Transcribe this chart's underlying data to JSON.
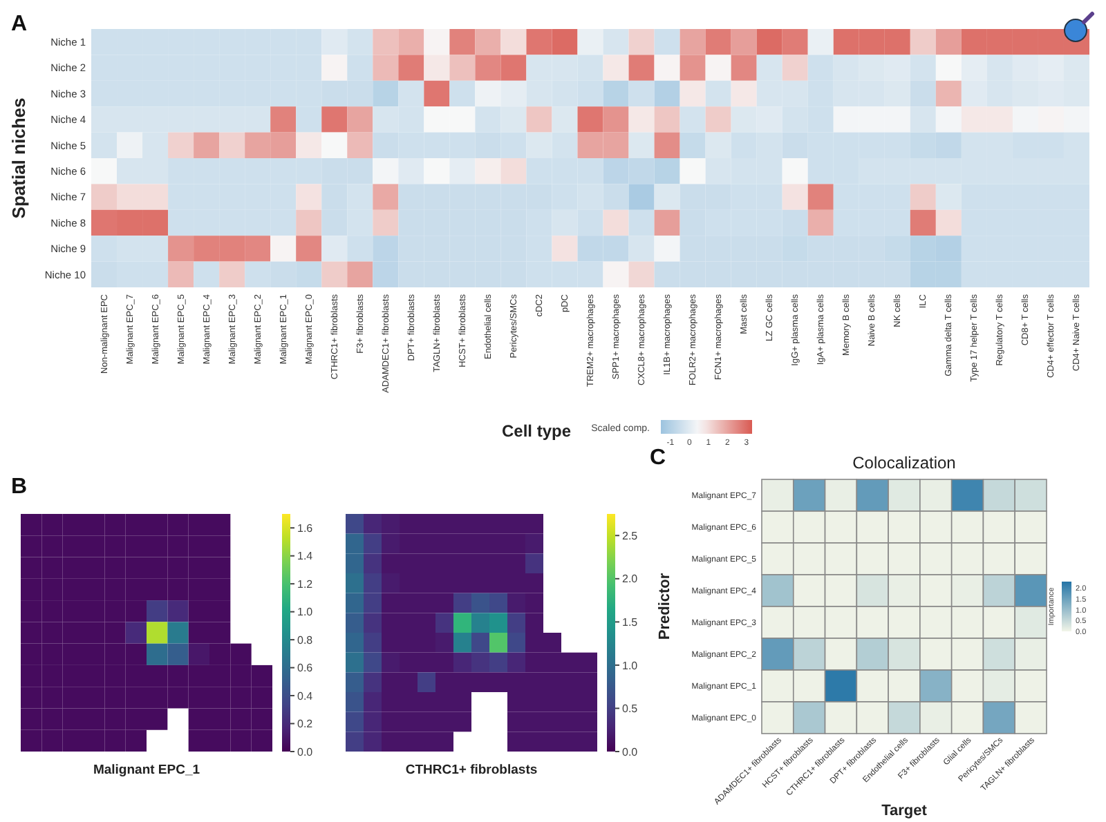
{
  "chart_data": [
    {
      "type": "heatmap",
      "annotations": [
        "A"
      ],
      "xlabel": "Cell type",
      "ylabel": "Spatial niches",
      "clabel": "Scaled comp.",
      "clim": [
        -1.5,
        3.3
      ],
      "cticks": [
        -1,
        0,
        1,
        2,
        3
      ],
      "categories": [
        "Non-malignant EPC",
        "Malignant EPC_7",
        "Malignant EPC_6",
        "Malignant EPC_5",
        "Malignant EPC_4",
        "Malignant EPC_3",
        "Malignant EPC_2",
        "Malignant EPC_1",
        "Malignant EPC_0",
        "CTHRC1+ fibroblasts",
        "F3+ fibroblasts",
        "ADAMDEC1+ fibroblasts",
        "DPT+ fibroblasts",
        "TAGLN+ fibroblasts",
        "HCST+ fibroblasts",
        "Endothelial cells",
        "Pericytes/SMCs",
        "cDC2",
        "pDC",
        "TREM2+ macrophages",
        "SPP1+ macrophages",
        "CXCL8+ macrophages",
        "IL1B+ macrophages",
        "FOLR2+ macrophages",
        "FCN1+ macrophages",
        "Mast cells",
        "LZ GC cells",
        "IgG+ plasma cells",
        "IgA+ plasma cells",
        "Memory B cells",
        "Naive B cells",
        "NK cells",
        "ILC",
        "Gamma delta T cells",
        "Type 17  helper T cells",
        "Regulatory T cells",
        "CD8+ T cells",
        "CD4+ effector T cells",
        "CD4+ Naive T cells"
      ],
      "y_categories": [
        "Niche 1",
        "Niche 2",
        "Niche 3",
        "Niche 4",
        "Niche 5",
        "Niche 6",
        "Niche 7",
        "Niche 8",
        "Niche 9",
        "Niche 10"
      ],
      "cells": [
        [
          -0.4,
          -0.4,
          -0.4,
          -0.4,
          -0.4,
          -0.4,
          -0.4,
          -0.4,
          -0.4,
          0,
          -0.3,
          1.5,
          1.8,
          0.6,
          2.6,
          1.8,
          1,
          2.8,
          3,
          0.2,
          -0.2,
          1.2,
          -0.4,
          2,
          2.7,
          2.1,
          3,
          2.7,
          0.2,
          2.9,
          2.9,
          2.9,
          1.3,
          2.1,
          2.9,
          2.9,
          2.9,
          2.9,
          2.9
        ],
        [
          -0.4,
          -0.4,
          -0.4,
          -0.4,
          -0.4,
          -0.4,
          -0.4,
          -0.4,
          -0.4,
          0.6,
          -0.4,
          1.6,
          2.7,
          0.8,
          1.5,
          2.5,
          2.8,
          -0.2,
          -0.2,
          -0.3,
          0.8,
          2.7,
          0.6,
          2.3,
          0.6,
          2.5,
          -0.2,
          1.2,
          -0.4,
          -0.2,
          -0.1,
          0,
          -0.3,
          0.5,
          0.1,
          -0.2,
          0,
          0.1,
          -0.1
        ],
        [
          -0.4,
          -0.4,
          -0.4,
          -0.4,
          -0.4,
          -0.4,
          -0.4,
          -0.4,
          -0.4,
          -0.5,
          -0.5,
          -0.9,
          -0.3,
          2.8,
          -0.4,
          0.3,
          0.1,
          -0.2,
          -0.3,
          -0.4,
          -0.9,
          -0.4,
          -1,
          0.8,
          -0.3,
          0.8,
          -0.2,
          -0.2,
          -0.4,
          -0.2,
          -0.2,
          -0.1,
          -0.5,
          1.7,
          0,
          -0.2,
          -0.1,
          0,
          -0.1
        ],
        [
          -0.2,
          -0.2,
          -0.2,
          -0.2,
          -0.2,
          -0.2,
          -0.2,
          2.6,
          -0.4,
          2.8,
          2,
          -0.2,
          -0.3,
          0.5,
          0.5,
          -0.3,
          -0.1,
          1.4,
          -0.1,
          2.8,
          2.3,
          0.8,
          1.4,
          -0.3,
          1.3,
          -0.1,
          0,
          -0.3,
          -0.4,
          0.4,
          0.4,
          0.4,
          -0.2,
          0.4,
          0.8,
          0.8,
          0.4,
          0.6,
          0.4
        ],
        [
          -0.3,
          0.3,
          -0.2,
          1.2,
          2,
          1.2,
          2,
          2.1,
          0.8,
          0.5,
          1.6,
          -0.5,
          -0.4,
          -0.4,
          -0.4,
          -0.5,
          -0.4,
          -0.1,
          -0.3,
          2,
          2,
          -0.1,
          2.4,
          -0.6,
          -0.1,
          -0.4,
          -0.3,
          -0.5,
          -0.4,
          -0.4,
          -0.4,
          -0.4,
          -0.6,
          -0.7,
          -0.3,
          -0.3,
          -0.4,
          -0.4,
          -0.3
        ],
        [
          0.5,
          -0.2,
          -0.2,
          -0.4,
          -0.4,
          -0.4,
          -0.4,
          -0.4,
          -0.4,
          -0.5,
          -0.5,
          0.4,
          0,
          0.5,
          0.1,
          0.7,
          1,
          -0.4,
          -0.4,
          -0.4,
          -0.8,
          -0.7,
          -0.9,
          0.5,
          -0.2,
          -0.3,
          -0.3,
          0.5,
          -0.4,
          -0.4,
          -0.3,
          -0.3,
          -0.3,
          -0.3,
          -0.3,
          -0.3,
          -0.3,
          -0.3,
          -0.3
        ],
        [
          1.3,
          1,
          1,
          -0.4,
          -0.4,
          -0.4,
          -0.4,
          -0.4,
          0.9,
          -0.5,
          -0.3,
          1.9,
          -0.5,
          -0.5,
          -0.5,
          -0.5,
          -0.5,
          -0.5,
          -0.4,
          -0.3,
          -0.5,
          -1.2,
          -0.1,
          -0.5,
          -0.5,
          -0.4,
          -0.4,
          0.9,
          2.6,
          -0.4,
          -0.4,
          -0.4,
          1.3,
          -0.1,
          -0.4,
          -0.4,
          -0.4,
          -0.4,
          -0.4
        ],
        [
          2.8,
          2.9,
          2.9,
          -0.4,
          -0.4,
          -0.4,
          -0.4,
          -0.4,
          1.4,
          -0.5,
          -0.3,
          1.3,
          -0.5,
          -0.5,
          -0.5,
          -0.5,
          -0.5,
          -0.4,
          -0.2,
          -0.4,
          1,
          -0.4,
          2.1,
          -0.5,
          -0.4,
          -0.4,
          -0.4,
          -0.5,
          1.8,
          -0.4,
          -0.4,
          -0.4,
          2.7,
          1,
          -0.4,
          -0.4,
          -0.4,
          -0.4,
          -0.4
        ],
        [
          -0.4,
          -0.3,
          -0.3,
          2.3,
          2.6,
          2.6,
          2.5,
          0.6,
          2.5,
          0,
          -0.4,
          -0.8,
          -0.5,
          -0.5,
          -0.5,
          -0.5,
          -0.5,
          -0.4,
          0.9,
          -0.7,
          -0.7,
          -0.2,
          0.4,
          -0.5,
          -0.5,
          -0.5,
          -0.5,
          -0.6,
          -0.5,
          -0.5,
          -0.5,
          -0.6,
          -0.9,
          -1,
          -0.4,
          -0.4,
          -0.4,
          -0.4,
          -0.4
        ],
        [
          -0.5,
          -0.4,
          -0.4,
          1.6,
          -0.4,
          1.3,
          -0.4,
          -0.5,
          -0.6,
          1.3,
          2,
          -0.8,
          -0.5,
          -0.5,
          -0.5,
          -0.5,
          -0.5,
          -0.4,
          -0.4,
          -0.4,
          0.6,
          1.1,
          -0.5,
          -0.5,
          -0.5,
          -0.5,
          -0.5,
          -0.5,
          -0.5,
          -0.5,
          -0.5,
          -0.5,
          -0.9,
          -0.9,
          -0.4,
          -0.4,
          -0.4,
          -0.4,
          -0.4
        ]
      ]
    },
    {
      "type": "heatmap",
      "annotations": [
        "B"
      ],
      "xlabel": "Malignant EPC_1",
      "clim": [
        0,
        1.7
      ],
      "categories": [
        null,
        null,
        null,
        null,
        null,
        null,
        null,
        null,
        null,
        null,
        null,
        null
      ],
      "y_categories": [
        null,
        null,
        null,
        null,
        null,
        null,
        null,
        null,
        null,
        null,
        null
      ],
      "cells": [
        [
          0.05,
          0.05,
          0.05,
          0.05,
          0.05,
          0.05,
          0.05,
          0.05,
          0.05,
          0.05,
          null,
          null
        ],
        [
          0.05,
          0.05,
          0.05,
          0.05,
          0.05,
          0.05,
          0.05,
          0.05,
          0.05,
          0.05,
          null,
          null
        ],
        [
          0.05,
          0.05,
          0.05,
          0.05,
          0.05,
          0.05,
          0.05,
          0.05,
          0.05,
          0.05,
          null,
          null
        ],
        [
          0.05,
          0.05,
          0.05,
          0.05,
          0.05,
          0.05,
          0.05,
          0.05,
          0.05,
          0.05,
          null,
          null
        ],
        [
          0.05,
          0.05,
          0.05,
          0.05,
          0.05,
          0.05,
          0.3,
          0.2,
          0.05,
          0.05,
          null,
          null
        ],
        [
          0.05,
          0.05,
          0.05,
          0.05,
          0.05,
          0.2,
          1.5,
          0.7,
          0.05,
          0.05,
          null,
          null
        ],
        [
          0.05,
          0.05,
          0.05,
          0.05,
          0.05,
          0.05,
          0.6,
          0.5,
          0.1,
          0.05,
          0.05,
          null
        ],
        [
          0.05,
          0.05,
          0.05,
          0.05,
          0.05,
          0.05,
          0.05,
          0.05,
          0.05,
          0.05,
          0.05,
          0.05
        ],
        [
          0.05,
          0.05,
          0.05,
          0.05,
          0.05,
          0.05,
          0.05,
          0.05,
          0.05,
          0.05,
          0.05,
          0.05
        ],
        [
          0.05,
          0.05,
          0.05,
          0.05,
          0.05,
          0.05,
          0.05,
          null,
          0.05,
          0.05,
          0.05,
          0.05
        ],
        [
          0.05,
          0.05,
          0.05,
          0.05,
          0.05,
          0.05,
          null,
          null,
          0.05,
          0.05,
          0.05,
          0.05
        ]
      ],
      "cticks": [
        {
          "value": 0,
          "label": "0.0"
        },
        {
          "value": 0.2,
          "label": "0.2"
        },
        {
          "value": 0.4,
          "label": "0.4"
        },
        {
          "value": 0.6,
          "label": "0.6"
        },
        {
          "value": 0.8,
          "label": "0.8"
        },
        {
          "value": 1,
          "label": "1.0"
        },
        {
          "value": 1.2,
          "label": "1.2"
        },
        {
          "value": 1.4,
          "label": "1.4"
        },
        {
          "value": 1.6,
          "label": "1.6"
        }
      ]
    },
    {
      "type": "heatmap",
      "xlabel": "CTHRC1+ fibroblasts",
      "clim": [
        0,
        2.75
      ],
      "categories": [
        null,
        null,
        null,
        null,
        null,
        null,
        null,
        null,
        null,
        null,
        null,
        null,
        null,
        null
      ],
      "y_categories": [
        null,
        null,
        null,
        null,
        null,
        null,
        null,
        null,
        null,
        null,
        null,
        null
      ],
      "cells": [
        [
          0.6,
          0.3,
          0.2,
          0.15,
          0.15,
          0.15,
          0.15,
          0.15,
          0.15,
          0.15,
          0.15,
          null,
          null,
          null
        ],
        [
          0.9,
          0.5,
          0.2,
          0.15,
          0.15,
          0.15,
          0.15,
          0.15,
          0.15,
          0.15,
          0.2,
          null,
          null,
          null
        ],
        [
          0.9,
          0.4,
          0.15,
          0.15,
          0.15,
          0.15,
          0.15,
          0.15,
          0.15,
          0.15,
          0.4,
          null,
          null,
          null
        ],
        [
          1,
          0.5,
          0.2,
          0.15,
          0.15,
          0.15,
          0.15,
          0.15,
          0.15,
          0.15,
          0.15,
          null,
          null,
          null
        ],
        [
          0.9,
          0.5,
          0.15,
          0.15,
          0.15,
          0.15,
          0.5,
          0.7,
          0.6,
          0.2,
          0.15,
          null,
          null,
          null
        ],
        [
          0.8,
          0.4,
          0.15,
          0.15,
          0.15,
          0.4,
          1.8,
          1.2,
          1.4,
          0.5,
          0.15,
          null,
          null,
          null
        ],
        [
          0.9,
          0.5,
          0.15,
          0.15,
          0.15,
          0.2,
          1.2,
          0.6,
          2,
          0.6,
          0.15,
          0.15,
          null,
          null
        ],
        [
          1,
          0.6,
          0.2,
          0.15,
          0.15,
          0.15,
          0.3,
          0.4,
          0.5,
          0.3,
          0.15,
          0.15,
          0.15,
          0.15
        ],
        [
          0.8,
          0.4,
          0.15,
          0.15,
          0.5,
          0.15,
          0.15,
          0.15,
          0.15,
          0.15,
          0.15,
          0.15,
          0.15,
          0.15
        ],
        [
          0.7,
          0.3,
          0.15,
          0.15,
          0.15,
          0.15,
          0.15,
          null,
          null,
          0.15,
          0.15,
          0.15,
          0.15,
          0.15
        ],
        [
          0.6,
          0.3,
          0.15,
          0.15,
          0.15,
          0.15,
          0.15,
          null,
          null,
          0.15,
          0.15,
          0.15,
          0.15,
          0.15
        ],
        [
          0.5,
          0.3,
          0.15,
          0.15,
          0.15,
          0.15,
          null,
          null,
          null,
          0.15,
          0.15,
          0.15,
          0.15,
          0.15
        ]
      ],
      "cticks": [
        {
          "value": 0,
          "label": "0.0"
        },
        {
          "value": 0.5,
          "label": "0.5"
        },
        {
          "value": 1,
          "label": "1.0"
        },
        {
          "value": 1.5,
          "label": "1.5"
        },
        {
          "value": 2,
          "label": "2.0"
        },
        {
          "value": 2.5,
          "label": "2.5"
        }
      ]
    },
    {
      "type": "heatmap",
      "annotations": [
        "C"
      ],
      "title": "Colocalization",
      "xlabel": "Target",
      "ylabel": "Predictor",
      "clabel": "Importance",
      "clim": [
        0,
        2.3
      ],
      "cticks": [
        {
          "value": 0,
          "label": "0.0"
        },
        {
          "value": 0.5,
          "label": "0.5"
        },
        {
          "value": 1,
          "label": "1.0"
        },
        {
          "value": 1.5,
          "label": "1.5"
        },
        {
          "value": 2,
          "label": "2.0"
        }
      ],
      "categories": [
        "ADAMDEC1+ fibroblasts",
        "HCST+ fibroblasts",
        "CTHRC1+ fibroblasts",
        "DPT+ fibroblasts",
        "Endothelial cells",
        "F3+ fibroblasts",
        "Glial cells",
        "Pericytes/SMCs",
        "TAGLN+ fibroblasts"
      ],
      "y_categories": [
        "Malignant EPC_7",
        "Malignant EPC_6",
        "Malignant EPC_5",
        "Malignant EPC_4",
        "Malignant EPC_3",
        "Malignant EPC_2",
        "Malignant EPC_1",
        "Malignant EPC_0"
      ],
      "cells": [
        [
          0.1,
          1.5,
          0.1,
          1.6,
          0.2,
          0.1,
          2,
          0.5,
          0.4
        ],
        [
          0.05,
          0.05,
          0.05,
          0.05,
          0.05,
          0.05,
          0.05,
          0.05,
          0.05
        ],
        [
          0.05,
          0.05,
          0.05,
          0.05,
          0.05,
          0.05,
          0.05,
          0.05,
          0.05
        ],
        [
          0.9,
          0.05,
          0.05,
          0.3,
          0.1,
          0.05,
          0.1,
          0.6,
          1.7
        ],
        [
          0.05,
          0.05,
          0.05,
          0.05,
          0.05,
          0.05,
          0.05,
          0.05,
          0.2
        ],
        [
          1.6,
          0.6,
          0.05,
          0.7,
          0.3,
          0.05,
          0.05,
          0.4,
          0.1
        ],
        [
          0.05,
          0.05,
          2.2,
          0.05,
          0.05,
          1.2,
          0.05,
          0.15,
          0.05
        ],
        [
          0.05,
          0.8,
          0.05,
          0.05,
          0.5,
          0.1,
          0.05,
          1.4,
          0.05
        ]
      ]
    }
  ]
}
